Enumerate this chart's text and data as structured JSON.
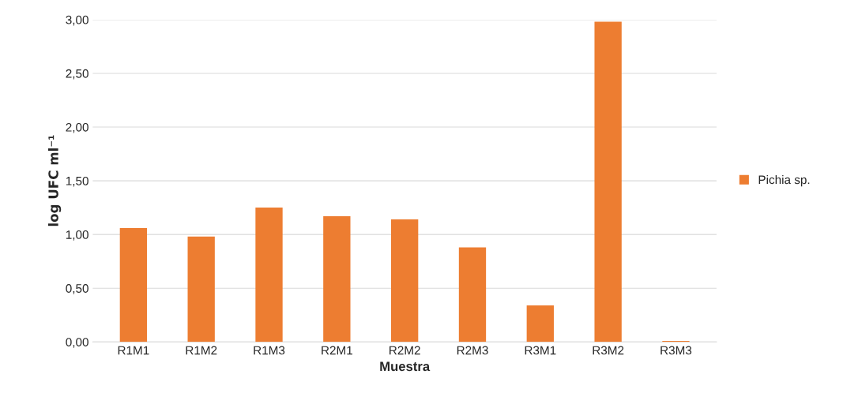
{
  "chart_data": {
    "type": "bar",
    "xlabel": "Muestra",
    "ylabel": "log UFC ml⁻¹",
    "categories": [
      "R1M1",
      "R1M2",
      "R1M3",
      "R2M1",
      "R2M2",
      "R2M3",
      "R3M1",
      "R3M2",
      "R3M3"
    ],
    "series": [
      {
        "name": "Pichia sp.",
        "color": "#ed7d31",
        "values": [
          1.06,
          0.98,
          1.25,
          1.17,
          1.14,
          0.88,
          0.34,
          2.98,
          0.01
        ]
      }
    ],
    "ylim": [
      0,
      3.0
    ],
    "yticks": [
      {
        "value": 0,
        "label": "0,00"
      },
      {
        "value": 0.5,
        "label": "0,50"
      },
      {
        "value": 1.0,
        "label": "1,00"
      },
      {
        "value": 1.5,
        "label": "1,50"
      },
      {
        "value": 2.0,
        "label": "2,00"
      },
      {
        "value": 2.5,
        "label": "2,50"
      },
      {
        "value": 3.0,
        "label": "3,00"
      }
    ],
    "grid": "y",
    "legend": "right"
  }
}
